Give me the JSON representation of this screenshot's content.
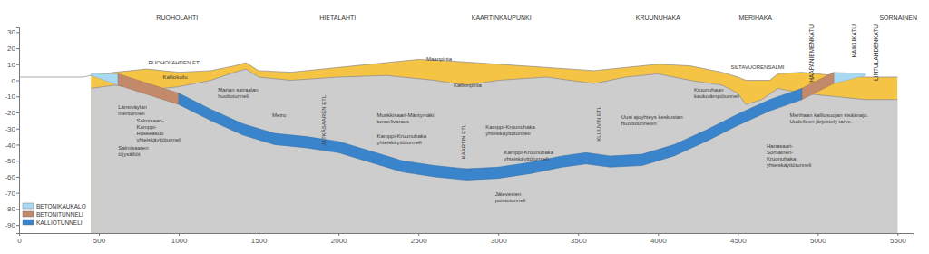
{
  "chart_data": {
    "type": "profile",
    "xlim": [
      0,
      5600
    ],
    "ylim": [
      -95,
      33
    ],
    "xticks": [
      0,
      500,
      1000,
      1500,
      2000,
      2500,
      3000,
      3500,
      4000,
      4500,
      5000,
      5500
    ],
    "yticks": [
      30,
      20,
      10,
      0,
      -10,
      -20,
      -30,
      -40,
      -50,
      -60,
      -70,
      -80,
      -90
    ],
    "grid": false,
    "legend": "lower left",
    "series": [
      {
        "type": "area",
        "color": "#f6c445",
        "x": [
          0,
          200,
          400,
          450,
          600,
          800,
          1000,
          1200,
          1350,
          1420,
          1500,
          1700,
          2000,
          2200,
          2500,
          2700,
          3000,
          3300,
          3600,
          3800,
          4000,
          4200,
          4400,
          4500,
          4550,
          4700,
          4750,
          4900,
          5100,
          5300,
          5500
        ],
        "values": [
          2,
          2,
          2,
          3,
          5,
          7,
          5,
          6,
          9,
          11,
          6,
          5,
          8,
          10,
          13,
          12,
          10,
          8,
          6,
          8,
          10,
          9,
          5,
          2,
          0,
          0,
          4,
          5,
          3,
          2,
          2
        ]
      },
      {
        "type": "area",
        "color": "#cdcdcd",
        "x": [
          450,
          600,
          800,
          1000,
          1200,
          1350,
          1420,
          1500,
          1700,
          2000,
          2300,
          2600,
          2800,
          3000,
          3300,
          3600,
          3800,
          4000,
          4200,
          4400,
          4500,
          4550,
          4650,
          4750,
          4900,
          5100,
          5300,
          5500
        ],
        "values": [
          -5,
          -3,
          -6,
          -4,
          0,
          5,
          7,
          2,
          0,
          2,
          3,
          0,
          -3,
          0,
          2,
          -2,
          2,
          4,
          0,
          -3,
          -8,
          -15,
          -12,
          -5,
          -8,
          -10,
          -12,
          -12
        ]
      },
      {
        "type": "band",
        "name": "BETONIKAUKALO",
        "color": "#a9d9f2",
        "x": [
          450,
          620,
          3000,
          5100,
          5300
        ],
        "values": [
          4,
          4,
          null,
          5,
          4
        ],
        "low": [
          3,
          -3,
          null,
          -2,
          3
        ]
      },
      {
        "type": "band",
        "name": "BETONITUNNELI",
        "color": "#c2896a",
        "x": [
          620,
          1000,
          3000,
          4900,
          5100
        ],
        "values": [
          4,
          -8,
          null,
          -5,
          5
        ],
        "low": [
          -3,
          -15,
          null,
          -12,
          -2
        ]
      },
      {
        "type": "band",
        "name": "KALLIOTUNNELI",
        "color": "#3a84cb",
        "x": [
          1000,
          1200,
          1400,
          1600,
          1800,
          2000,
          2200,
          2400,
          2600,
          2800,
          3000,
          3200,
          3400,
          3550,
          3700,
          3900,
          4100,
          4300,
          4500,
          4700,
          4900
        ],
        "values": [
          -8,
          -18,
          -27,
          -33,
          -35,
          -38,
          -44,
          -50,
          -53,
          -55,
          -54,
          -51,
          -47,
          -45,
          -47,
          -46,
          -40,
          -31,
          -21,
          -12,
          -5
        ],
        "low": [
          -15,
          -25,
          -34,
          -40,
          -42,
          -45,
          -51,
          -57,
          -60,
          -62,
          -61,
          -58,
          -54,
          -52,
          -54,
          -53,
          -47,
          -38,
          -28,
          -19,
          -12
        ]
      }
    ],
    "top_labels": [
      {
        "text": "RUOHOLAHTI",
        "x": 990
      },
      {
        "text": "HIETALAHTI",
        "x": 1995
      },
      {
        "text": "KAARTINKAUPUNKI",
        "x": 3020
      },
      {
        "text": "KRUUNUHAKA",
        "x": 4000
      },
      {
        "text": "MERIHAKA",
        "x": 4610
      },
      {
        "text": "SÖRNÄINEN",
        "x": 5505
      }
    ],
    "top_vertical_labels": [
      {
        "text": "HAAPANIEMENKATU",
        "x": 4965
      },
      {
        "text": "KAIKUKATU",
        "x": 5230
      },
      {
        "text": "LINTULAHDENKATU",
        "x": 5365
      }
    ],
    "annotations": [
      {
        "text": [
          "Länsiväylän",
          "meritunneli"
        ],
        "x": 620,
        "y": -18
      },
      {
        "text": [
          "RUOHOLAHDEN ETL"
        ],
        "x": 810,
        "y": 10
      },
      {
        "text": [
          "Kalliokuilu"
        ],
        "x": 900,
        "y": 1
      },
      {
        "text": [
          "Marian sairaalan",
          "huoltotunneli"
        ],
        "x": 1245,
        "y": -7
      },
      {
        "text": [
          "Metro"
        ],
        "x": 1585,
        "y": -23
      },
      {
        "text": [
          "Salmisaari-",
          "Kamppi-",
          "Ruskeasuo",
          "yhteiskäyttötunneli"
        ],
        "x": 735,
        "y": -26
      },
      {
        "text": [
          "Salmisaaren",
          "öljysäiliöt"
        ],
        "x": 620,
        "y": -43
      },
      {
        "text": [
          "Munkkisaari-Mäntymäki",
          "tunnelivaraus"
        ],
        "x": 2240,
        "y": -23
      },
      {
        "text": [
          "Kamppi-Kruunuhaka",
          "yhteiskäyttötunneli"
        ],
        "x": 2240,
        "y": -36
      },
      {
        "text": [
          "Kamppi-Kruunuhaka",
          "yhteiskäyttötunneli"
        ],
        "x": 2920,
        "y": -30
      },
      {
        "text": [
          "Kamppi-Kruunuhaka",
          "yhteiskäyttötunneli"
        ],
        "x": 3035,
        "y": -46
      },
      {
        "text": [
          "Jätevesien",
          "poistotunneli"
        ],
        "x": 2980,
        "y": -72
      },
      {
        "text": [
          "Maanpinta"
        ],
        "x": 2550,
        "y": 12
      },
      {
        "text": [
          "Kallionpinta"
        ],
        "x": 2720,
        "y": -4
      },
      {
        "text": [
          "Uusi ajoyhteys keskustan",
          "huoltotunneliin"
        ],
        "x": 3770,
        "y": -24
      },
      {
        "text": [
          "Kruunuhaan",
          "kaukolämpötunneli"
        ],
        "x": 4225,
        "y": -7
      },
      {
        "text": [
          "SILTAVUORENSALMI"
        ],
        "x": 4455,
        "y": 7
      },
      {
        "text": [
          "Merihaan kalliosuojan sisäänajo.",
          "Uudelleen järjestely tarve."
        ],
        "x": 4825,
        "y": -23
      },
      {
        "text": [
          "Hanasaari-",
          "Sörnäinen-",
          "Kruunuhaka",
          "yhteiskäyttötunneli"
        ],
        "x": 4680,
        "y": -42
      }
    ],
    "vertical_annotations": [
      {
        "text": "JÄTKÄSAAREN ETL",
        "x": 1910,
        "y": -25
      },
      {
        "text": "KAARTIN ETL",
        "x": 2780,
        "y": -38
      },
      {
        "text": "KLUUVIN ETL",
        "x": 3630,
        "y": -27
      }
    ]
  }
}
